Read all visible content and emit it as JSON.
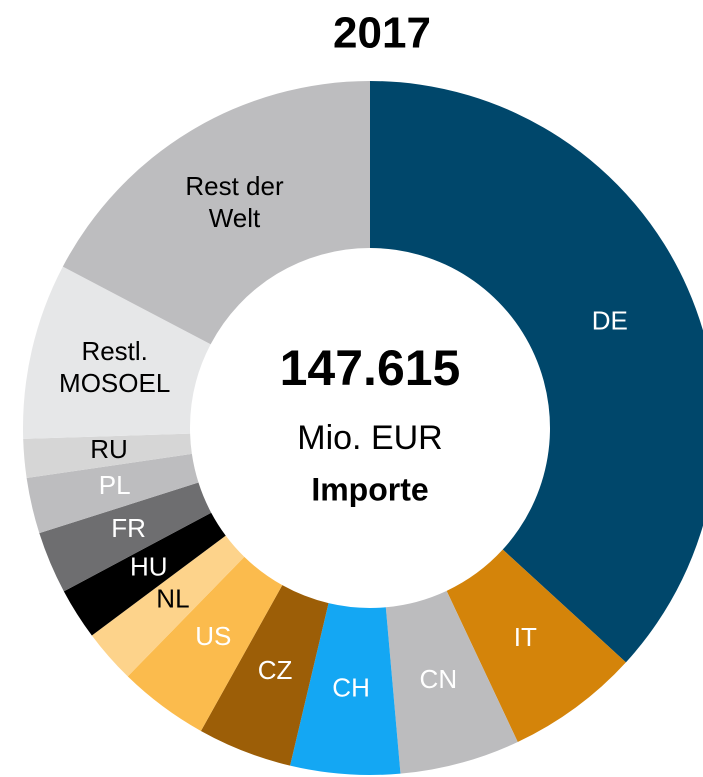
{
  "chart_data": {
    "type": "donut",
    "title": "2017",
    "center_value": "147.615",
    "center_unit": "Mio. EUR",
    "center_label": "Importe",
    "categories": [
      "DE",
      "IT",
      "CN",
      "CH",
      "CZ",
      "US",
      "NL",
      "HU",
      "FR",
      "PL",
      "RU",
      "Restl. MOSOEL",
      "Rest der Welt"
    ],
    "values": [
      36.8,
      6.2,
      5.6,
      5.1,
      4.4,
      4.2,
      2.5,
      2.4,
      2.9,
      2.6,
      1.8,
      8.2,
      17.3
    ],
    "colors": [
      "#00476b",
      "#d4840a",
      "#bcbcbe",
      "#14a7f3",
      "#9c5e07",
      "#fbbb4d",
      "#fdd38b",
      "#000000",
      "#6e6e70",
      "#bdbdbf",
      "#d6d6d6",
      "#e6e7e8",
      "#bdbdbf"
    ],
    "label_colors": [
      "#ffffff",
      "#ffffff",
      "#ffffff",
      "#ffffff",
      "#ffffff",
      "#ffffff",
      "#000000",
      "#ffffff",
      "#ffffff",
      "#ffffff",
      "#000000",
      "#000000",
      "#000000"
    ]
  }
}
